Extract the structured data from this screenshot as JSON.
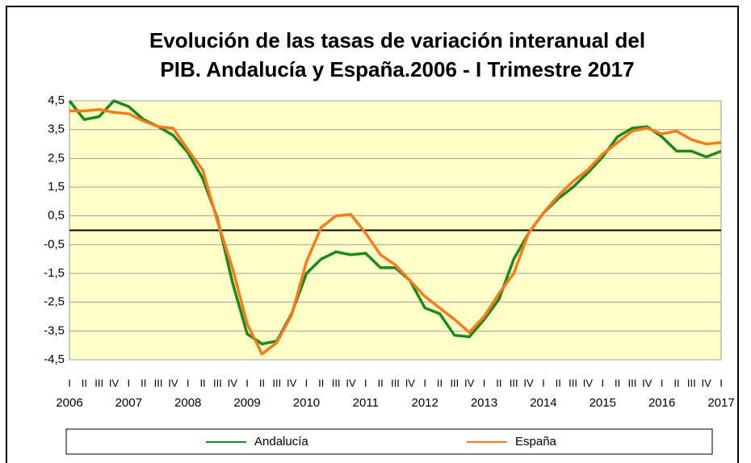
{
  "chart_data": {
    "type": "line",
    "title": "Evolución de las tasas de variación interanual del",
    "subtitle": "PIB.   Andalucía y España.2006 - I Trimestre 2017",
    "categories": [
      "I",
      "II",
      "III",
      "IV",
      "I",
      "II",
      "III",
      "IV",
      "I",
      "II",
      "III",
      "IV",
      "I",
      "II",
      "III",
      "IV",
      "I",
      "II",
      "III",
      "IV",
      "I",
      "II",
      "III",
      "IV",
      "I",
      "II",
      "III",
      "IV",
      "I",
      "II",
      "III",
      "IV",
      "I",
      "II",
      "III",
      "IV",
      "I",
      "II",
      "III",
      "IV",
      "I",
      "II",
      "III",
      "IV",
      "I"
    ],
    "years": [
      "2006",
      "2007",
      "2008",
      "2009",
      "2010",
      "2011",
      "2012",
      "2013",
      "2014",
      "2015",
      "2016",
      "2017"
    ],
    "series": [
      {
        "name": "Andalucía",
        "color": "#1a8a1a",
        "values": [
          4.5,
          3.85,
          3.95,
          4.5,
          4.3,
          3.85,
          3.6,
          3.3,
          2.7,
          1.8,
          0.4,
          -1.8,
          -3.6,
          -3.95,
          -3.85,
          -2.9,
          -1.5,
          -1.0,
          -0.75,
          -0.85,
          -0.8,
          -1.3,
          -1.3,
          -1.75,
          -2.7,
          -2.9,
          -3.65,
          -3.7,
          -3.1,
          -2.4,
          -1.0,
          -0.1,
          0.6,
          1.1,
          1.5,
          2.0,
          2.55,
          3.25,
          3.55,
          3.6,
          3.25,
          2.75,
          2.75,
          2.55,
          2.75
        ]
      },
      {
        "name": "España",
        "color": "#ff7a1a",
        "values": [
          4.15,
          4.15,
          4.2,
          4.1,
          4.05,
          3.8,
          3.6,
          3.55,
          2.8,
          2.1,
          0.3,
          -1.3,
          -3.25,
          -4.3,
          -3.9,
          -2.95,
          -1.1,
          0.1,
          0.5,
          0.55,
          -0.1,
          -0.85,
          -1.2,
          -1.75,
          -2.3,
          -2.7,
          -3.1,
          -3.55,
          -3.0,
          -2.2,
          -1.5,
          -0.1,
          0.6,
          1.2,
          1.7,
          2.1,
          2.65,
          3.05,
          3.45,
          3.55,
          3.35,
          3.45,
          3.15,
          3.0,
          3.05
        ]
      }
    ],
    "ylim": [
      -4.5,
      4.5
    ],
    "yticks": [
      {
        "value": -4.5,
        "label": "-4,5"
      },
      {
        "value": -3.5,
        "label": "-3,5"
      },
      {
        "value": -2.5,
        "label": "-2,5"
      },
      {
        "value": -1.5,
        "label": "-1,5"
      },
      {
        "value": -0.5,
        "label": "-0,5"
      },
      {
        "value": 0.5,
        "label": "0,5"
      },
      {
        "value": 1.5,
        "label": "1,5"
      },
      {
        "value": 2.5,
        "label": "2,5"
      },
      {
        "value": 3.5,
        "label": "3,5"
      },
      {
        "value": 4.5,
        "label": "4,5"
      }
    ],
    "grid": true,
    "plot_background": "#ffffc8"
  }
}
